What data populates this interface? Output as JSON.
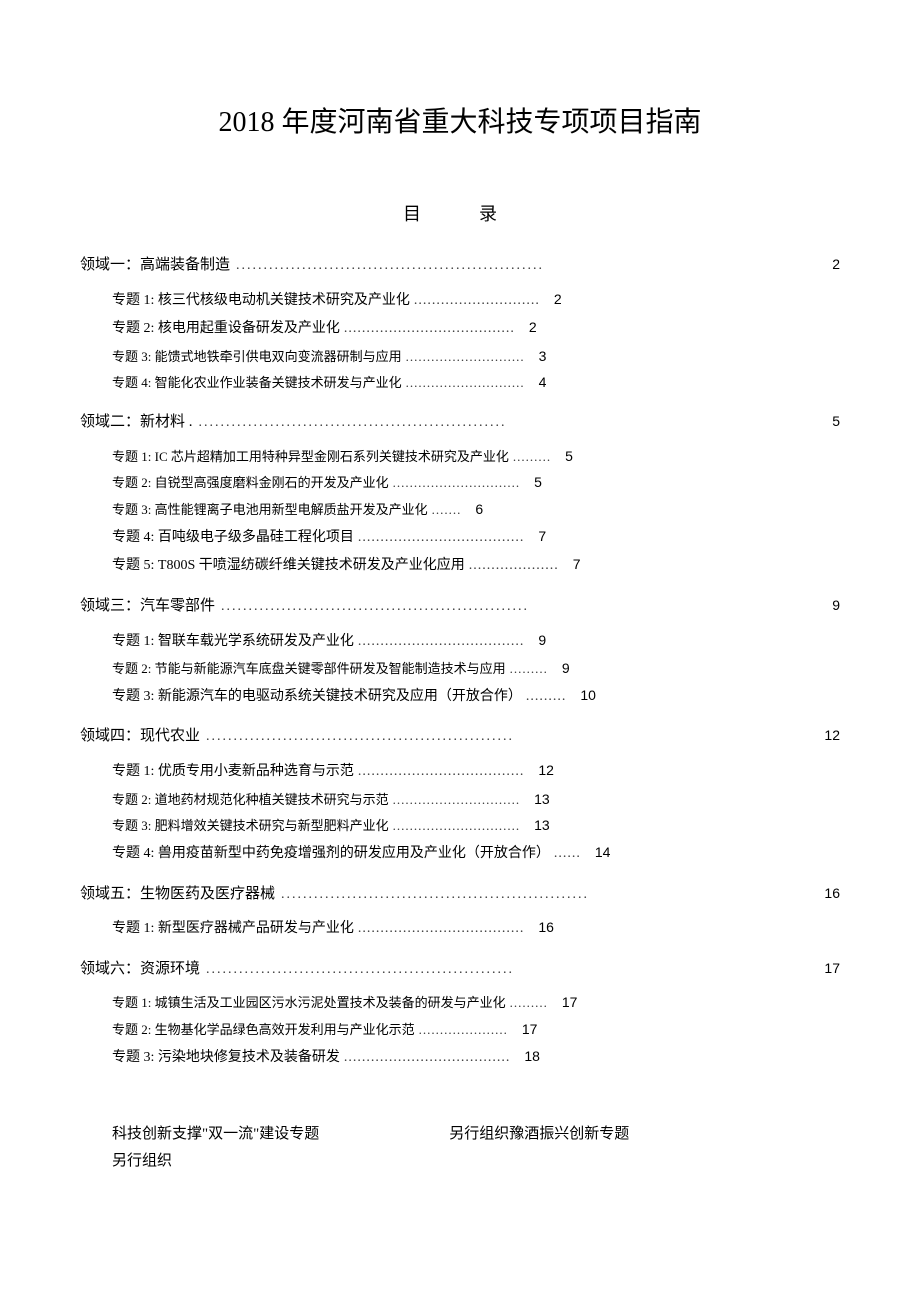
{
  "title": "2018 年度河南省重大科技专项项目指南",
  "toc_heading": "目　录",
  "leader_domain": "........................................................",
  "leader_long": "......................................................................",
  "leader_med": ".....................................",
  "leader_short": ".......................",
  "domains": [
    {
      "label": "领域一：高端装备制造",
      "page": "2",
      "topics": [
        {
          "label": "专题 1: 核三代核级电动机关键技术研究及产业化",
          "leader": "............................",
          "page": "2",
          "small": false
        },
        {
          "label": "专题 2: 核电用起重设备研发及产业化",
          "leader": "......................................",
          "page": "2",
          "small": false
        },
        {
          "label": "专题 3: 能馈式地铁牵引供电双向变流器研制与应用",
          "leader": "............................",
          "page": "3",
          "small": true
        },
        {
          "label": "专题 4: 智能化农业作业装备关键技术研发与产业化",
          "leader": "............................",
          "page": "4",
          "small": true
        }
      ]
    },
    {
      "label": "领域二：新材料 .",
      "page": "5",
      "topics": [
        {
          "label": "专题 1:  IC 芯片超精加工用特种异型金刚石系列关键技术研究及产业化",
          "leader": ".........",
          "page": "5",
          "small": true
        },
        {
          "label": "专题 2:  自锐型高强度磨料金刚石的开发及产业化",
          "leader": "..............................",
          "page": "5",
          "small": true
        },
        {
          "label": "专题 3:  高性能锂离子电池用新型电解质盐开发及产业化",
          "leader": ".......",
          "page": "6",
          "small": true
        },
        {
          "label": "专题 4:  百吨级电子级多晶硅工程化项目",
          "leader": ".....................................",
          "page": "7",
          "small": false
        },
        {
          "label": "专题 5:  T800S 干喷湿纺碳纤维关键技术研发及产业化应用",
          "leader": "....................",
          "page": "7",
          "small": false
        }
      ]
    },
    {
      "label": "领域三：汽车零部件",
      "page": "9",
      "topics": [
        {
          "label": "专题 1:  智联车载光学系统研发及产业化",
          "leader": ".....................................",
          "page": "9",
          "small": false
        },
        {
          "label": "专题 2:  节能与新能源汽车底盘关键零部件研发及智能制造技术与应用",
          "leader": ".........",
          "page": "9",
          "small": true
        },
        {
          "label": "专题 3:  新能源汽车的电驱动系统关键技术研究及应用（开放合作）",
          "leader": ".........",
          "page": "10",
          "small": false
        }
      ]
    },
    {
      "label": "领域四：现代农业",
      "page": "12",
      "topics": [
        {
          "label": "专题 1: 优质专用小麦新品种选育与示范",
          "leader": ".....................................",
          "page": "12",
          "small": false
        },
        {
          "label": "专题 2: 道地药材规范化种植关键技术研究与示范",
          "leader": "..............................",
          "page": "13",
          "small": true
        },
        {
          "label": "专题 3: 肥料增效关键技术研究与新型肥料产业化",
          "leader": "..............................",
          "page": "13",
          "small": true
        },
        {
          "label": "专题 4:  兽用疫苗新型中药免疫增强剂的研发应用及产业化（开放合作）",
          "leader": "...... ",
          "page": "14",
          "small": false
        }
      ]
    },
    {
      "label": "领域五：生物医药及医疗器械",
      "page": "16",
      "topics": [
        {
          "label": "专题 1:  新型医疗器械产品研发与产业化",
          "leader": ".....................................",
          "page": "16",
          "small": false
        }
      ]
    },
    {
      "label": "领域六：资源环境",
      "page": "17",
      "topics": [
        {
          "label": "专题 1: 城镇生活及工业园区污水污泥处置技术及装备的研发与产业化",
          "leader": ".........",
          "page": "17",
          "small": true
        },
        {
          "label": "专题 2: 生物基化学品绿色高效开发利用与产业化示范",
          "leader": ".....................",
          "page": "17",
          "small": true
        },
        {
          "label": "专题 3:  污染地块修复技术及装备研发",
          "leader": ".....................................",
          "page": "18",
          "small": false
        }
      ]
    }
  ],
  "footer": {
    "left": "科技创新支撑\"双一流\"建设专题",
    "right": "另行组织豫酒振兴创新专题",
    "line2": "另行组织"
  }
}
